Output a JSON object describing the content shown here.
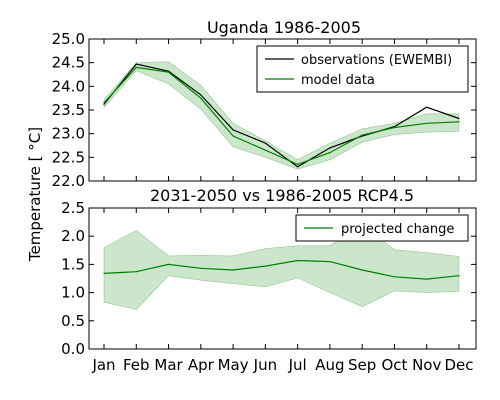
{
  "chart_data": [
    {
      "type": "line",
      "title": "Uganda  1986-2005",
      "categories": [
        "Jan",
        "Feb",
        "Mar",
        "Apr",
        "May",
        "Jun",
        "Jul",
        "Aug",
        "Sep",
        "Oct",
        "Nov",
        "Dec"
      ],
      "ylim": [
        22.0,
        25.0
      ],
      "yticks": [
        "22.0",
        "22.5",
        "23.0",
        "23.5",
        "24.0",
        "24.5",
        "25.0"
      ],
      "legend_position": "top-right",
      "series": [
        {
          "name": "observations (EWEMBI)",
          "color": "#000000",
          "values": [
            23.62,
            24.47,
            24.32,
            23.82,
            23.08,
            22.8,
            22.3,
            22.7,
            22.95,
            23.15,
            23.56,
            23.32
          ]
        },
        {
          "name": "model data",
          "color": "#008000",
          "values": [
            23.65,
            24.4,
            24.3,
            23.75,
            22.95,
            22.65,
            22.35,
            22.6,
            22.97,
            23.13,
            23.22,
            23.25
          ],
          "band_low": [
            23.55,
            24.33,
            24.05,
            23.52,
            22.72,
            22.5,
            22.25,
            22.45,
            22.82,
            22.98,
            23.03,
            23.05
          ],
          "band_high": [
            23.72,
            24.5,
            24.52,
            24.02,
            23.22,
            22.85,
            22.45,
            22.8,
            23.1,
            23.22,
            23.42,
            23.42
          ]
        }
      ]
    },
    {
      "type": "line",
      "title": "2031-2050 vs 1986-2005 RCP4.5",
      "categories": [
        "Jan",
        "Feb",
        "Mar",
        "Apr",
        "May",
        "Jun",
        "Jul",
        "Aug",
        "Sep",
        "Oct",
        "Nov",
        "Dec"
      ],
      "ylim": [
        0.0,
        2.5
      ],
      "yticks": [
        "0.0",
        "0.5",
        "1.0",
        "1.5",
        "2.0",
        "2.5"
      ],
      "legend_position": "top-right",
      "series": [
        {
          "name": "projected change",
          "color": "#008000",
          "values": [
            1.34,
            1.37,
            1.5,
            1.43,
            1.4,
            1.47,
            1.57,
            1.55,
            1.4,
            1.28,
            1.24,
            1.3
          ],
          "band_low": [
            0.83,
            0.7,
            1.3,
            1.22,
            1.16,
            1.1,
            1.26,
            1.0,
            0.75,
            1.03,
            1.0,
            1.02
          ],
          "band_high": [
            1.8,
            2.1,
            1.65,
            1.66,
            1.65,
            1.78,
            1.83,
            1.83,
            2.2,
            1.76,
            1.71,
            1.64
          ]
        }
      ]
    }
  ],
  "shared_ylabel": "Temperature [$^\\circ C$]",
  "shared_ylabel_display": "Temperature [ °C]"
}
